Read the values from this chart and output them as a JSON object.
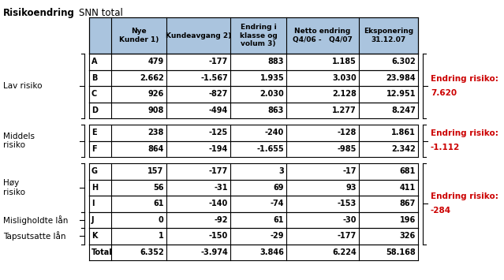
{
  "title_left": "Risikoendring",
  "title_right": "SNN total",
  "header_labels": [
    "",
    "Nye\nKunder 1)",
    "Kundeavgang 2)",
    "Endring i\nklasse og\nvolum 3)",
    "Netto endring\nQ4/06 -   Q4/07",
    "Eksponering\n31.12.07"
  ],
  "rows": [
    [
      "A",
      "479",
      "-177",
      "883",
      "1.185",
      "6.302"
    ],
    [
      "B",
      "2.662",
      "-1.567",
      "1.935",
      "3.030",
      "23.984"
    ],
    [
      "C",
      "926",
      "-827",
      "2.030",
      "2.128",
      "12.951"
    ],
    [
      "D",
      "908",
      "-494",
      "863",
      "1.277",
      "8.247"
    ],
    [
      "E",
      "238",
      "-125",
      "-240",
      "-128",
      "1.861"
    ],
    [
      "F",
      "864",
      "-194",
      "-1.655",
      "-985",
      "2.342"
    ],
    [
      "G",
      "157",
      "-177",
      "3",
      "-17",
      "681"
    ],
    [
      "H",
      "56",
      "-31",
      "69",
      "93",
      "411"
    ],
    [
      "I",
      "61",
      "-140",
      "-74",
      "-153",
      "867"
    ],
    [
      "J",
      "0",
      "-92",
      "61",
      "-30",
      "196"
    ],
    [
      "K",
      "1",
      "-150",
      "-29",
      "-177",
      "326"
    ],
    [
      "Total",
      "6.352",
      "-3.974",
      "3.846",
      "6.224",
      "58.168"
    ]
  ],
  "left_groups": [
    {
      "label": "Lav risiko",
      "rows": [
        0,
        1,
        2,
        3
      ]
    },
    {
      "label": "Middels\nrisiko",
      "rows": [
        4,
        5
      ]
    },
    {
      "label": "Høy\nrisiko",
      "rows": [
        6,
        7,
        8
      ]
    },
    {
      "label": "Misligholdte lån",
      "rows": [
        9
      ]
    },
    {
      "label": "Tapsutsatte lån",
      "rows": [
        10
      ]
    }
  ],
  "right_groups": [
    {
      "label": "Endring risiko:\n7.620",
      "rows": [
        0,
        1,
        2,
        3
      ]
    },
    {
      "label": "Endring risiko:\n-1.112",
      "rows": [
        4,
        5
      ]
    },
    {
      "label": "Endring risiko:\n-284",
      "rows": [
        6,
        7,
        8,
        9,
        10
      ]
    }
  ],
  "header_bg": "#aac4de",
  "grid_color": "#000000",
  "text_color": "#000000",
  "red_color": "#cc0000",
  "figsize": [
    6.39,
    3.55
  ],
  "dpi": 100
}
